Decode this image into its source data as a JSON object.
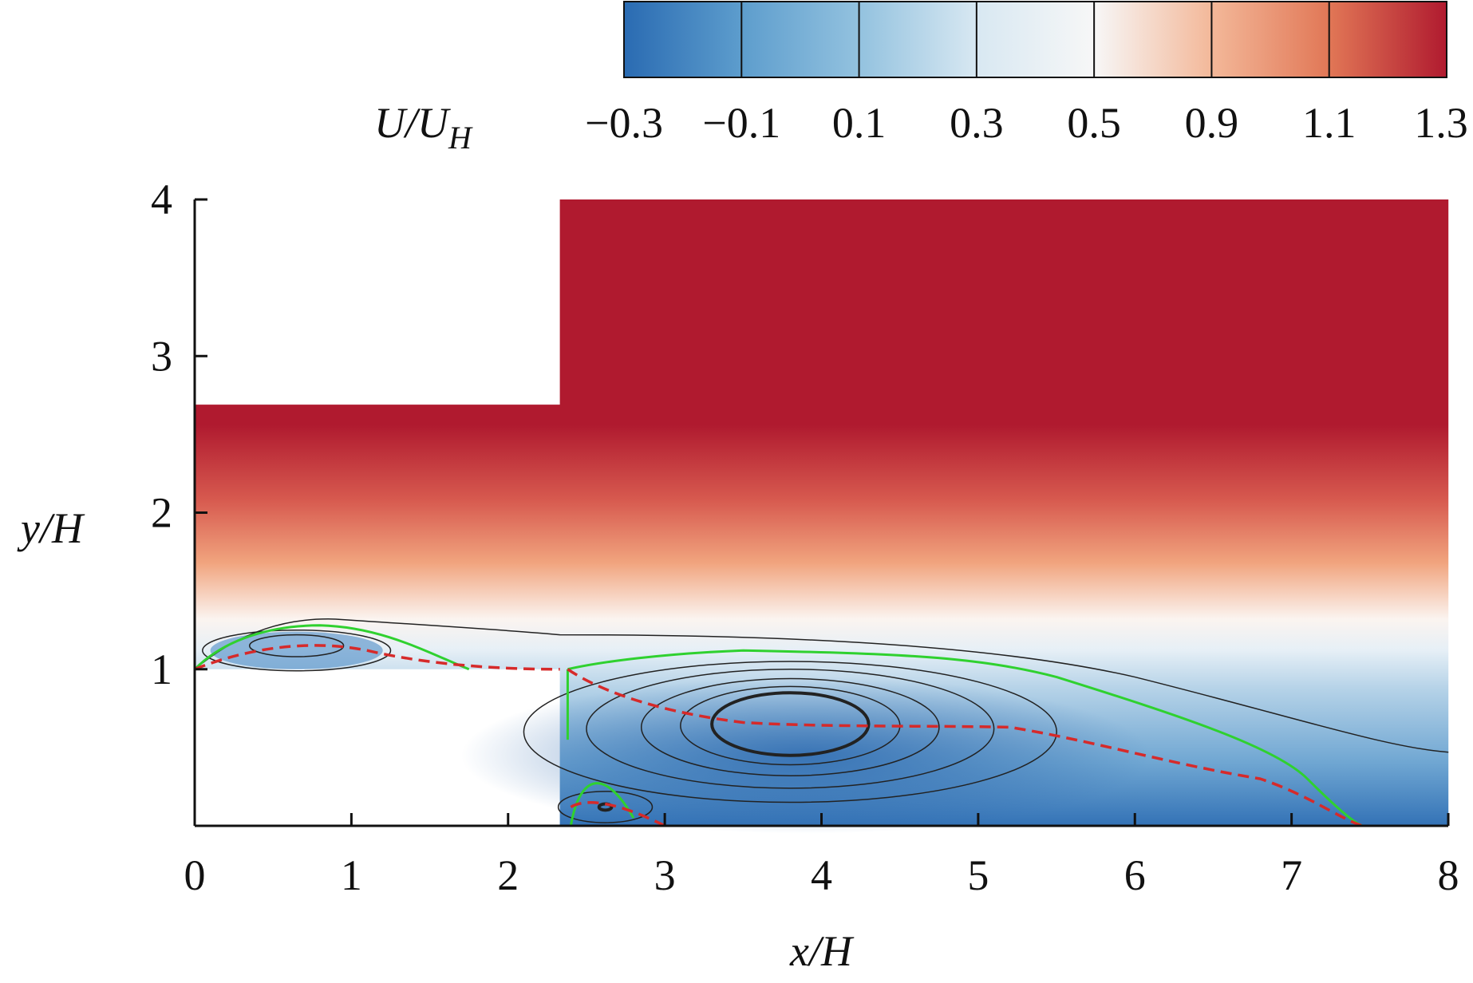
{
  "chart_data": {
    "type": "contour",
    "xlabel": "x/H",
    "ylabel": "y/H",
    "xlim": [
      0,
      8
    ],
    "ylim": [
      0,
      4
    ],
    "xticks": [
      0,
      1,
      2,
      3,
      4,
      5,
      6,
      7,
      8
    ],
    "yticks": [
      1,
      2,
      3,
      4
    ],
    "colorbar": {
      "label": "U/U",
      "label_subscript": "H",
      "ticks": [
        {
          "value": -0.3,
          "label": "−0.3"
        },
        {
          "value": -0.1,
          "label": "−0.1"
        },
        0.1,
        0.3,
        0.5,
        0.9,
        1.1,
        1.3
      ],
      "colors": [
        "#2a6bb2",
        "#5d9dcd",
        "#93c2df",
        "#d8e8f2",
        "#f7f7f7",
        "#f3b899",
        "#e17756",
        "#b01a2f"
      ]
    }
  }
}
